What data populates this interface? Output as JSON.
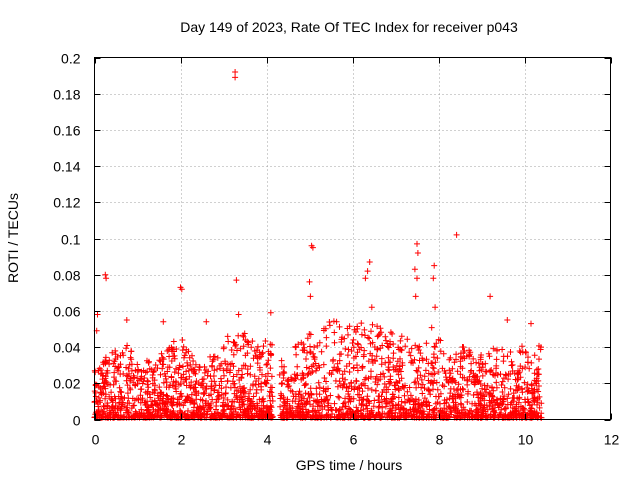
{
  "chart_data": {
    "type": "scatter",
    "title": "Day 149 of 2023, Rate Of TEC Index for receiver p043",
    "xlabel": "GPS time / hours",
    "ylabel": "ROTI / TECUs",
    "xlim": [
      0,
      12
    ],
    "ylim": [
      0,
      0.2
    ],
    "xticks": [
      0,
      2,
      4,
      6,
      8,
      10,
      12
    ],
    "xtick_labels": [
      "0",
      "2",
      "4",
      "6",
      "8",
      "10",
      "12"
    ],
    "yticks": [
      0,
      0.02,
      0.04,
      0.06,
      0.08,
      0.1,
      0.12,
      0.14,
      0.16,
      0.18,
      0.2
    ],
    "ytick_labels": [
      "0",
      "0.02",
      "0.04",
      "0.06",
      "0.08",
      "0.1",
      "0.12",
      "0.14",
      "0.16",
      "0.18",
      "0.2"
    ],
    "grid": true,
    "marker": "plus",
    "series_color": "#ff0000",
    "coverage": {
      "x_start": 0.0,
      "x_end": 10.4,
      "gap": [
        4.15,
        4.3
      ]
    },
    "density_envelope": [
      [
        0.0,
        0.026
      ],
      [
        0.3,
        0.04
      ],
      [
        0.6,
        0.035
      ],
      [
        0.8,
        0.045
      ],
      [
        1.0,
        0.03
      ],
      [
        1.3,
        0.032
      ],
      [
        1.6,
        0.038
      ],
      [
        2.0,
        0.045
      ],
      [
        2.4,
        0.03
      ],
      [
        2.8,
        0.035
      ],
      [
        3.1,
        0.045
      ],
      [
        3.4,
        0.05
      ],
      [
        3.8,
        0.04
      ],
      [
        4.1,
        0.045
      ],
      [
        4.4,
        0.03
      ],
      [
        4.8,
        0.045
      ],
      [
        5.2,
        0.05
      ],
      [
        5.6,
        0.055
      ],
      [
        6.0,
        0.05
      ],
      [
        6.4,
        0.055
      ],
      [
        6.8,
        0.05
      ],
      [
        7.2,
        0.045
      ],
      [
        7.6,
        0.04
      ],
      [
        7.9,
        0.055
      ],
      [
        8.2,
        0.035
      ],
      [
        8.6,
        0.04
      ],
      [
        9.0,
        0.035
      ],
      [
        9.4,
        0.04
      ],
      [
        9.8,
        0.035
      ],
      [
        10.1,
        0.045
      ],
      [
        10.4,
        0.04
      ]
    ],
    "notable_points": [
      {
        "x": 0.07,
        "y": 0.058
      },
      {
        "x": 0.05,
        "y": 0.049
      },
      {
        "x": 0.25,
        "y": 0.08
      },
      {
        "x": 0.27,
        "y": 0.078
      },
      {
        "x": 0.75,
        "y": 0.055
      },
      {
        "x": 1.6,
        "y": 0.054
      },
      {
        "x": 2.0,
        "y": 0.073
      },
      {
        "x": 2.03,
        "y": 0.072
      },
      {
        "x": 2.6,
        "y": 0.054
      },
      {
        "x": 3.27,
        "y": 0.192
      },
      {
        "x": 3.27,
        "y": 0.189
      },
      {
        "x": 3.3,
        "y": 0.077
      },
      {
        "x": 3.35,
        "y": 0.058
      },
      {
        "x": 4.1,
        "y": 0.059
      },
      {
        "x": 5.05,
        "y": 0.096
      },
      {
        "x": 5.08,
        "y": 0.095
      },
      {
        "x": 5.0,
        "y": 0.076
      },
      {
        "x": 5.02,
        "y": 0.068
      },
      {
        "x": 6.4,
        "y": 0.087
      },
      {
        "x": 6.35,
        "y": 0.082
      },
      {
        "x": 6.3,
        "y": 0.078
      },
      {
        "x": 6.45,
        "y": 0.062
      },
      {
        "x": 7.5,
        "y": 0.097
      },
      {
        "x": 7.52,
        "y": 0.092
      },
      {
        "x": 7.45,
        "y": 0.083
      },
      {
        "x": 7.5,
        "y": 0.078
      },
      {
        "x": 7.47,
        "y": 0.068
      },
      {
        "x": 7.9,
        "y": 0.085
      },
      {
        "x": 7.88,
        "y": 0.078
      },
      {
        "x": 7.92,
        "y": 0.062
      },
      {
        "x": 8.42,
        "y": 0.102
      },
      {
        "x": 9.2,
        "y": 0.068
      },
      {
        "x": 10.15,
        "y": 0.053
      },
      {
        "x": 9.6,
        "y": 0.055
      }
    ]
  }
}
